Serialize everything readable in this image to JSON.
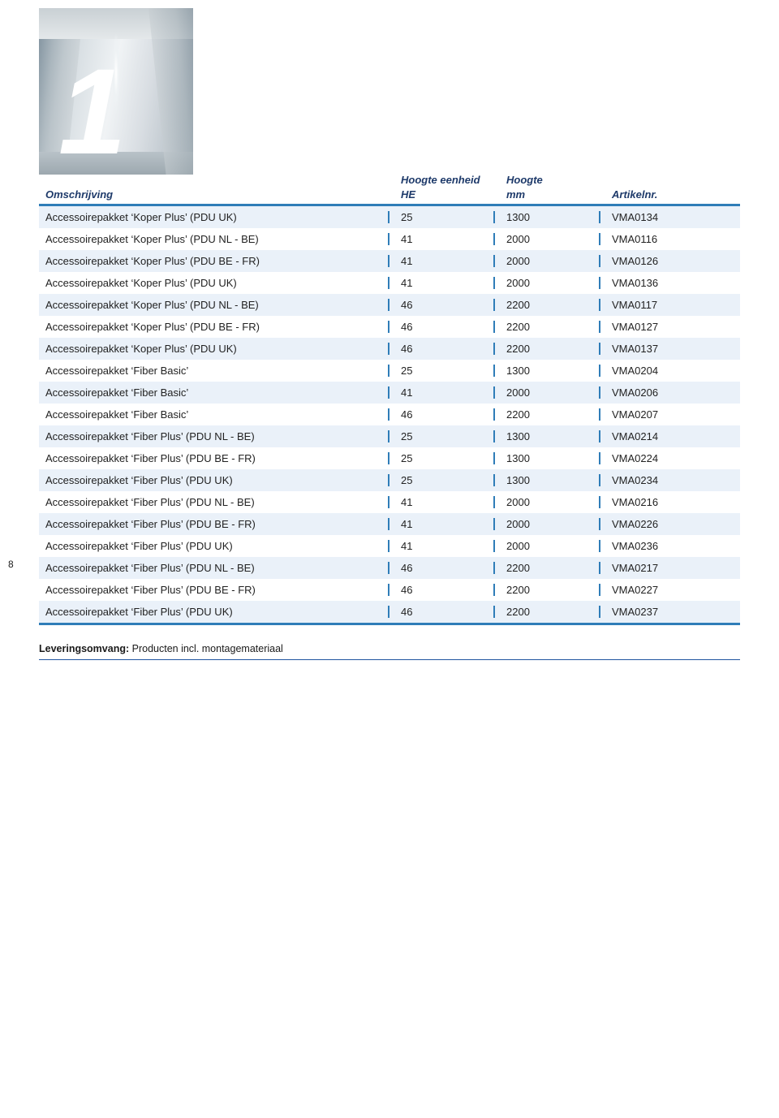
{
  "hero_number": "1",
  "page_number": "8",
  "header": {
    "omschrijving": "Omschrijving",
    "he_super": "Hoogte eenheid",
    "he": "HE",
    "mm_super": "Hoogte",
    "mm": "mm",
    "artikelnr": "Artikelnr."
  },
  "colors": {
    "accent": "#2f7db8",
    "header_text": "#1e3a6a",
    "row_alt_bg": "#eaf1f9",
    "row_bg": "#ffffff",
    "footer_rule": "#2055a0"
  },
  "rows": [
    {
      "desc": "Accessoirepakket ‘Koper Plus’ (PDU UK)",
      "he": "25",
      "mm": "1300",
      "art": "VMA0134"
    },
    {
      "desc": "Accessoirepakket ‘Koper Plus’ (PDU NL - BE)",
      "he": "41",
      "mm": "2000",
      "art": "VMA0116"
    },
    {
      "desc": "Accessoirepakket ‘Koper Plus’ (PDU BE - FR)",
      "he": "41",
      "mm": "2000",
      "art": "VMA0126"
    },
    {
      "desc": "Accessoirepakket ‘Koper Plus’ (PDU UK)",
      "he": "41",
      "mm": "2000",
      "art": "VMA0136"
    },
    {
      "desc": "Accessoirepakket ‘Koper Plus’ (PDU NL - BE)",
      "he": "46",
      "mm": "2200",
      "art": "VMA0117"
    },
    {
      "desc": "Accessoirepakket ‘Koper Plus’ (PDU BE - FR)",
      "he": "46",
      "mm": "2200",
      "art": "VMA0127"
    },
    {
      "desc": "Accessoirepakket ‘Koper Plus’ (PDU UK)",
      "he": "46",
      "mm": "2200",
      "art": "VMA0137"
    },
    {
      "desc": "Accessoirepakket ‘Fiber Basic’",
      "he": "25",
      "mm": "1300",
      "art": "VMA0204"
    },
    {
      "desc": "Accessoirepakket ‘Fiber Basic’",
      "he": "41",
      "mm": "2000",
      "art": "VMA0206"
    },
    {
      "desc": "Accessoirepakket ‘Fiber Basic’",
      "he": "46",
      "mm": "2200",
      "art": "VMA0207"
    },
    {
      "desc": "Accessoirepakket ‘Fiber Plus’ (PDU NL - BE)",
      "he": "25",
      "mm": "1300",
      "art": "VMA0214"
    },
    {
      "desc": "Accessoirepakket ‘Fiber Plus’ (PDU BE - FR)",
      "he": "25",
      "mm": "1300",
      "art": "VMA0224"
    },
    {
      "desc": "Accessoirepakket ‘Fiber Plus’ (PDU UK)",
      "he": "25",
      "mm": "1300",
      "art": "VMA0234"
    },
    {
      "desc": "Accessoirepakket ‘Fiber Plus’ (PDU NL - BE)",
      "he": "41",
      "mm": "2000",
      "art": "VMA0216"
    },
    {
      "desc": "Accessoirepakket ‘Fiber Plus’ (PDU BE - FR)",
      "he": "41",
      "mm": "2000",
      "art": "VMA0226"
    },
    {
      "desc": "Accessoirepakket ‘Fiber Plus’ (PDU UK)",
      "he": "41",
      "mm": "2000",
      "art": "VMA0236"
    },
    {
      "desc": "Accessoirepakket ‘Fiber Plus’ (PDU NL - BE)",
      "he": "46",
      "mm": "2200",
      "art": "VMA0217"
    },
    {
      "desc": "Accessoirepakket ‘Fiber Plus’ (PDU BE - FR)",
      "he": "46",
      "mm": "2200",
      "art": "VMA0227"
    },
    {
      "desc": "Accessoirepakket ‘Fiber Plus’ (PDU UK)",
      "he": "46",
      "mm": "2200",
      "art": "VMA0237"
    }
  ],
  "footer": {
    "label": "Leveringsomvang:",
    "text": " Producten incl. montagemateriaal"
  }
}
